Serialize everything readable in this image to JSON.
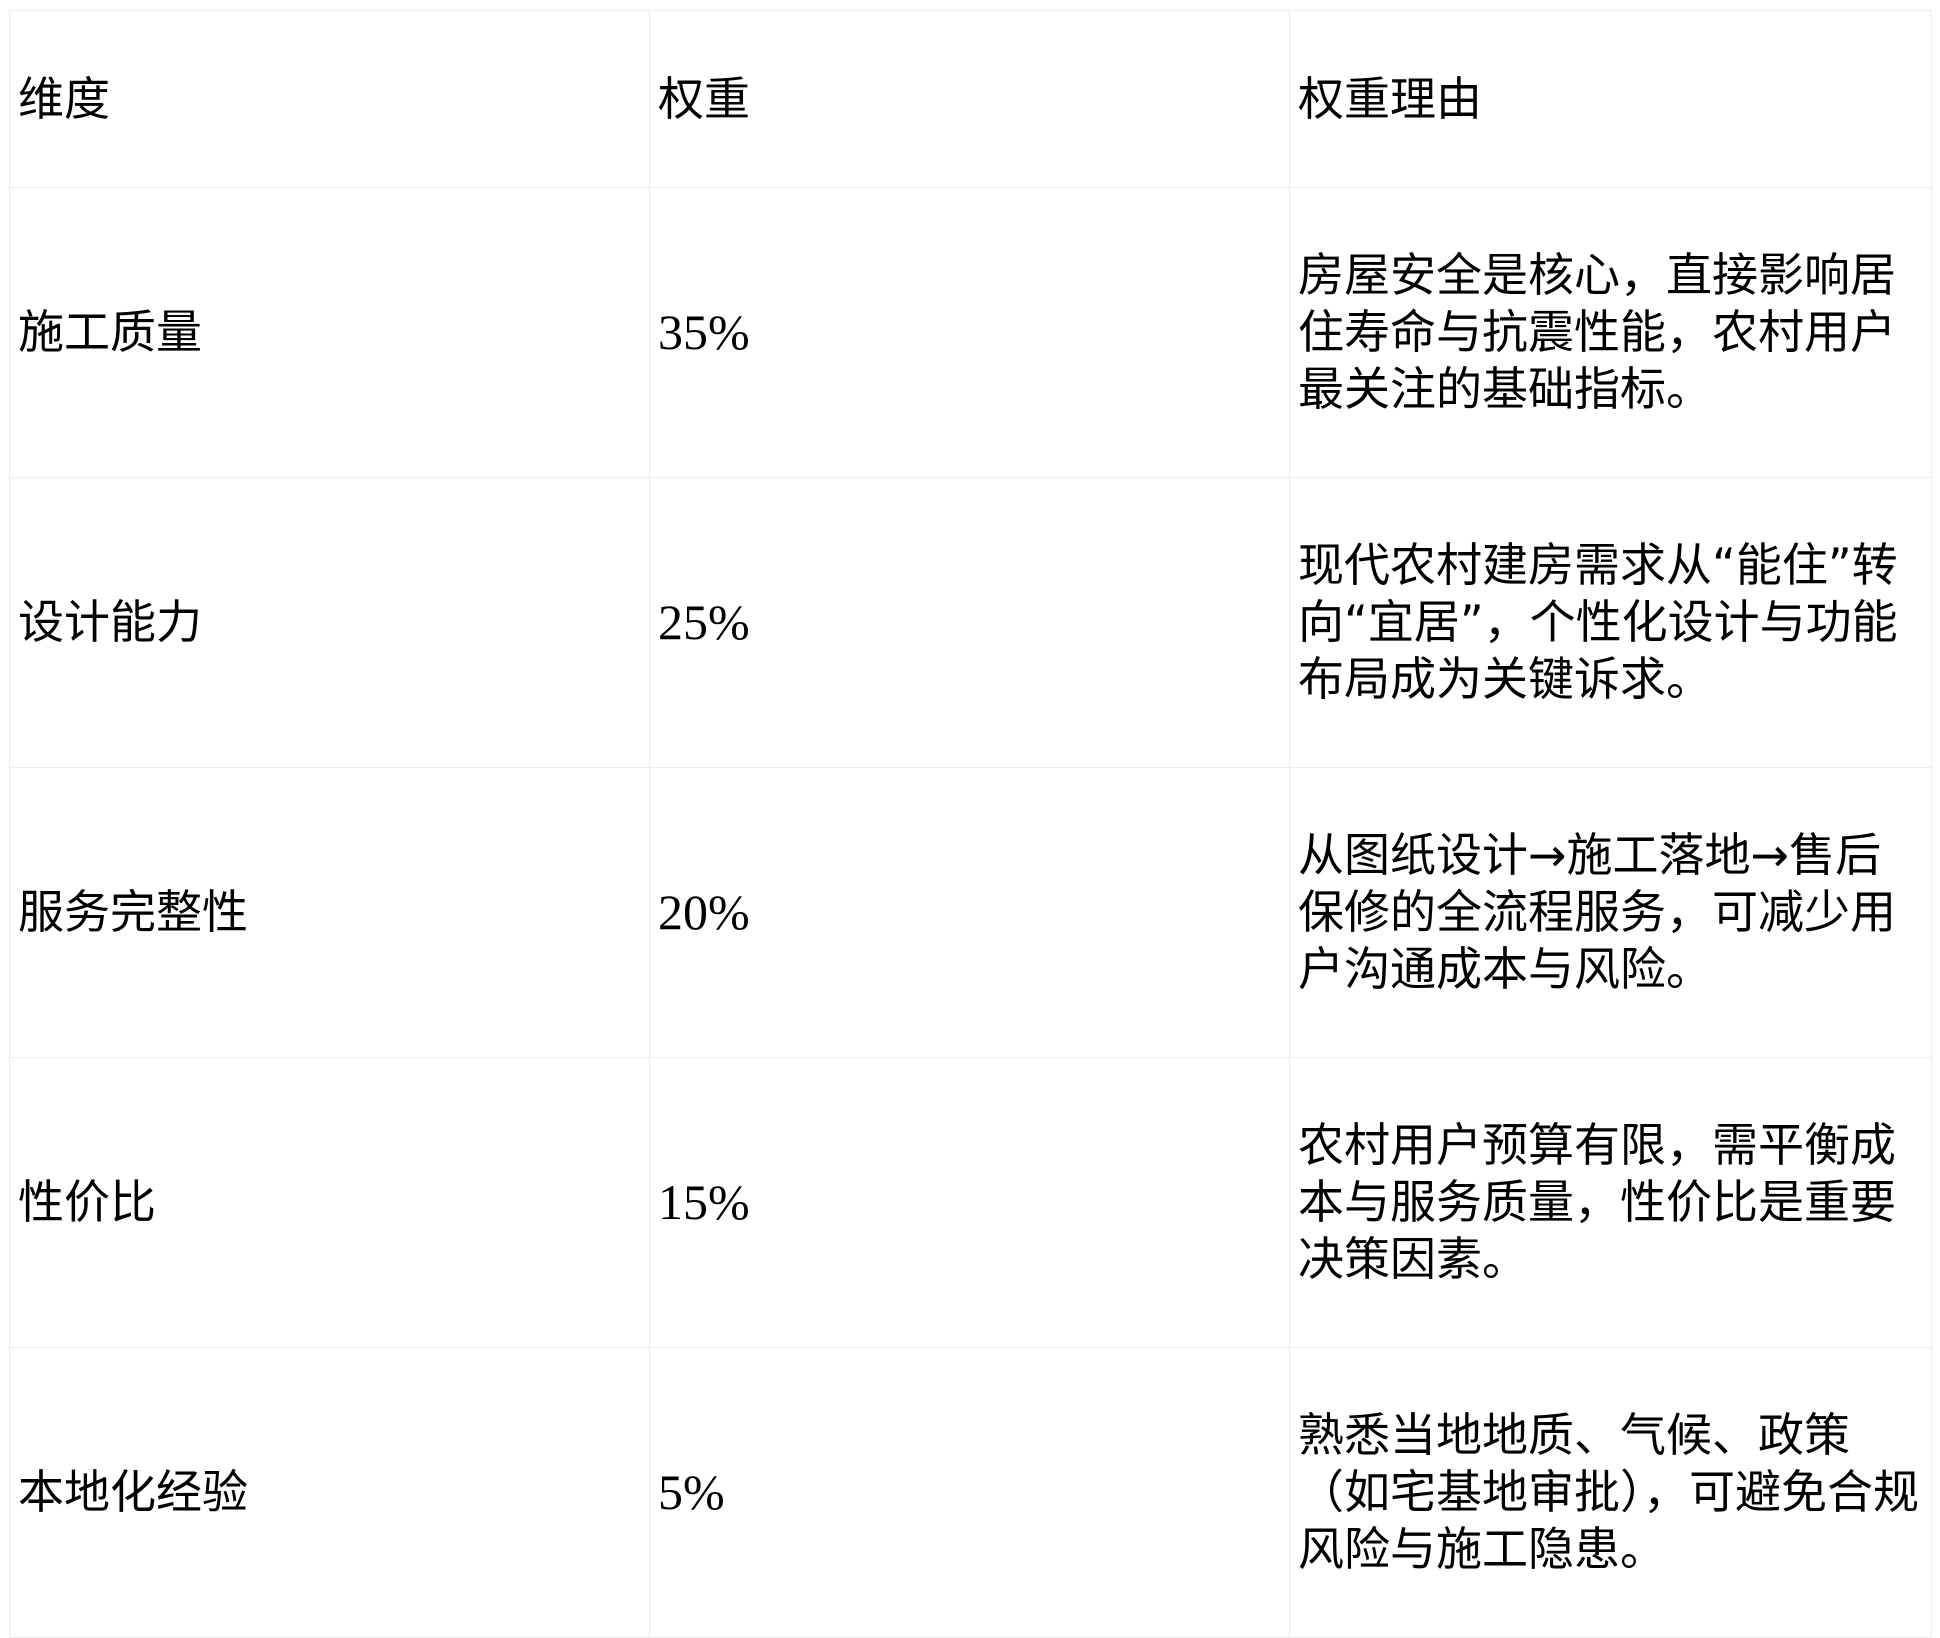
{
  "table": {
    "headers": [
      "维度",
      "权重",
      "权重理由"
    ],
    "rows": [
      {
        "dimension": "施工质量",
        "weight": "35%",
        "reason": "房屋安全是核心，直接影响居住寿命与抗震性能，农村用户最关注的基础指标。"
      },
      {
        "dimension": "设计能力",
        "weight": "25%",
        "reason": "现代农村建房需求从“能住”转向“宜居”，个性化设计与功能布局成为关键诉求。"
      },
      {
        "dimension": "服务完整性",
        "weight": "20%",
        "reason": "从图纸设计→施工落地→售后保修的全流程服务，可减少用户沟通成本与风险。"
      },
      {
        "dimension": "性价比",
        "weight": "15%",
        "reason": "农村用户预算有限，需平衡成本与服务质量，性价比是重要决策因素。"
      },
      {
        "dimension": "本地化经验",
        "weight": "5%",
        "reason": "熟悉当地地质、气候、政策（如宅基地审批），可避免合规风险与施工隐患。"
      }
    ]
  }
}
